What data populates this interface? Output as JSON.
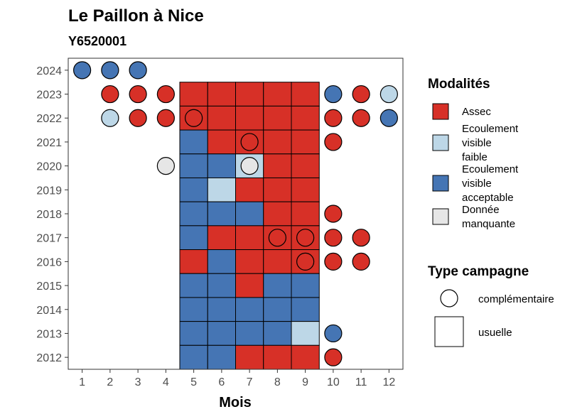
{
  "chart_data": {
    "type": "heatmap",
    "title": "Le Paillon à Nice",
    "subtitle": "Y6520001",
    "xlabel": "Mois",
    "ylabel": "",
    "x_ticks": [
      "1",
      "2",
      "3",
      "4",
      "5",
      "6",
      "7",
      "8",
      "9",
      "10",
      "11",
      "12"
    ],
    "y_ticks": [
      "2012",
      "2013",
      "2014",
      "2015",
      "2016",
      "2017",
      "2018",
      "2019",
      "2020",
      "2021",
      "2022",
      "2023",
      "2024"
    ],
    "xlim": [
      0.5,
      12.5
    ],
    "ylim": [
      2011.5,
      2024.5
    ],
    "grid": false,
    "legend_position": "right",
    "modalites_title": "Modalités",
    "campagne_title": "Type campagne",
    "modalites": [
      {
        "key": "assec",
        "label_lines": [
          "Assec"
        ],
        "color": "#d73027"
      },
      {
        "key": "faible",
        "label_lines": [
          "Ecoulement",
          "visible",
          "faible"
        ],
        "color": "#bdd7e7"
      },
      {
        "key": "acceptable",
        "label_lines": [
          "Ecoulement",
          "visible",
          "acceptable"
        ],
        "color": "#4575b4"
      },
      {
        "key": "manquante",
        "label_lines": [
          "Donnée",
          "manquante"
        ],
        "color": "#e6e6e6"
      }
    ],
    "campagnes": [
      {
        "key": "complementaire",
        "label": "complémentaire",
        "shape": "circle"
      },
      {
        "key": "usuelle",
        "label": "usuelle",
        "shape": "square"
      }
    ],
    "usuelle": [
      {
        "year": 2023,
        "values": [
          "assec",
          "assec",
          "assec",
          "assec",
          "assec"
        ]
      },
      {
        "year": 2022,
        "values": [
          "assec",
          "assec",
          "assec",
          "assec",
          "assec"
        ]
      },
      {
        "year": 2021,
        "values": [
          "acceptable",
          "assec",
          "assec",
          "assec",
          "assec"
        ]
      },
      {
        "year": 2020,
        "values": [
          "acceptable",
          "acceptable",
          "faible",
          "assec",
          "assec"
        ]
      },
      {
        "year": 2019,
        "values": [
          "acceptable",
          "faible",
          "assec",
          "assec",
          "assec"
        ]
      },
      {
        "year": 2018,
        "values": [
          "acceptable",
          "acceptable",
          "acceptable",
          "assec",
          "assec"
        ]
      },
      {
        "year": 2017,
        "values": [
          "acceptable",
          "assec",
          "assec",
          "assec",
          "assec"
        ]
      },
      {
        "year": 2016,
        "values": [
          "assec",
          "acceptable",
          "assec",
          "assec",
          "assec"
        ]
      },
      {
        "year": 2015,
        "values": [
          "acceptable",
          "acceptable",
          "assec",
          "acceptable",
          "acceptable"
        ]
      },
      {
        "year": 2014,
        "values": [
          "acceptable",
          "acceptable",
          "acceptable",
          "acceptable",
          "acceptable"
        ]
      },
      {
        "year": 2013,
        "values": [
          "acceptable",
          "acceptable",
          "acceptable",
          "acceptable",
          "faible"
        ]
      },
      {
        "year": 2012,
        "values": [
          "acceptable",
          "acceptable",
          "assec",
          "assec",
          "assec"
        ]
      }
    ],
    "usuelle_months": [
      5,
      6,
      7,
      8,
      9
    ],
    "complementaire": [
      {
        "year": 2024,
        "month": 1,
        "value": "acceptable"
      },
      {
        "year": 2024,
        "month": 2,
        "value": "acceptable"
      },
      {
        "year": 2024,
        "month": 3,
        "value": "acceptable"
      },
      {
        "year": 2023,
        "month": 2,
        "value": "assec"
      },
      {
        "year": 2023,
        "month": 3,
        "value": "assec"
      },
      {
        "year": 2023,
        "month": 4,
        "value": "assec"
      },
      {
        "year": 2023,
        "month": 10,
        "value": "acceptable"
      },
      {
        "year": 2023,
        "month": 11,
        "value": "assec"
      },
      {
        "year": 2023,
        "month": 12,
        "value": "faible"
      },
      {
        "year": 2022,
        "month": 2,
        "value": "faible"
      },
      {
        "year": 2022,
        "month": 3,
        "value": "assec"
      },
      {
        "year": 2022,
        "month": 4,
        "value": "assec"
      },
      {
        "year": 2022,
        "month": 5,
        "value": "assec"
      },
      {
        "year": 2022,
        "month": 10,
        "value": "assec"
      },
      {
        "year": 2022,
        "month": 11,
        "value": "assec"
      },
      {
        "year": 2022,
        "month": 12,
        "value": "acceptable"
      },
      {
        "year": 2021,
        "month": 7,
        "value": "assec"
      },
      {
        "year": 2021,
        "month": 10,
        "value": "assec"
      },
      {
        "year": 2020,
        "month": 4,
        "value": "manquante"
      },
      {
        "year": 2020,
        "month": 7,
        "value": "manquante"
      },
      {
        "year": 2018,
        "month": 10,
        "value": "assec"
      },
      {
        "year": 2017,
        "month": 8,
        "value": "assec"
      },
      {
        "year": 2017,
        "month": 9,
        "value": "assec"
      },
      {
        "year": 2017,
        "month": 10,
        "value": "assec"
      },
      {
        "year": 2017,
        "month": 11,
        "value": "assec"
      },
      {
        "year": 2016,
        "month": 9,
        "value": "assec"
      },
      {
        "year": 2016,
        "month": 10,
        "value": "assec"
      },
      {
        "year": 2016,
        "month": 11,
        "value": "assec"
      },
      {
        "year": 2013,
        "month": 10,
        "value": "acceptable"
      },
      {
        "year": 2012,
        "month": 10,
        "value": "assec"
      }
    ]
  }
}
